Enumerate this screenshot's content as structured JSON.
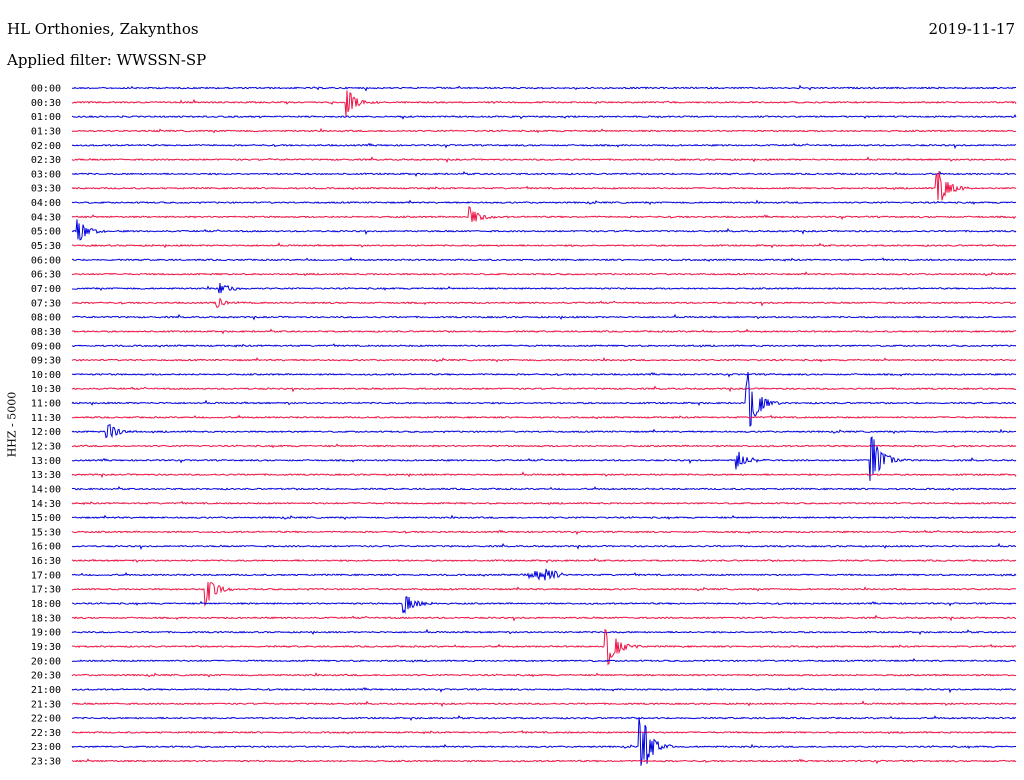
{
  "header": {
    "station": "HL Orthonies, Zakynthos",
    "filter": "Applied filter: WWSSN-SP",
    "date": "2019-11-17"
  },
  "chart_data": {
    "type": "line",
    "title": "HL Orthonies, Zakynthos",
    "subtitle": "Applied filter: WWSSN-SP",
    "ylabel": "HHZ - 5000",
    "colors": {
      "even_row": "#0000dd",
      "odd_row": "#ee1144"
    },
    "rows": [
      "00:00",
      "00:30",
      "01:00",
      "01:30",
      "02:00",
      "02:30",
      "03:00",
      "03:30",
      "04:00",
      "04:30",
      "05:00",
      "05:30",
      "06:00",
      "06:30",
      "07:00",
      "07:30",
      "08:00",
      "08:30",
      "09:00",
      "09:30",
      "10:00",
      "10:30",
      "11:00",
      "11:30",
      "12:00",
      "12:30",
      "13:00",
      "13:30",
      "14:00",
      "14:30",
      "15:00",
      "15:30",
      "16:00",
      "16:30",
      "17:00",
      "17:30",
      "18:00",
      "18:30",
      "19:00",
      "19:30",
      "20:00",
      "20:30",
      "21:00",
      "21:30",
      "22:00",
      "22:30",
      "23:00",
      "23:30"
    ],
    "events": [
      {
        "row": 1,
        "t": 0.29,
        "amp": 15,
        "kind": "quake"
      },
      {
        "row": 7,
        "t": 0.915,
        "amp": 25,
        "kind": "quake"
      },
      {
        "row": 9,
        "t": 0.42,
        "amp": 12,
        "kind": "quake"
      },
      {
        "row": 10,
        "t": 0.005,
        "amp": 14,
        "kind": "quake"
      },
      {
        "row": 14,
        "t": 0.155,
        "amp": 7,
        "kind": "quake"
      },
      {
        "row": 15,
        "t": 0.152,
        "amp": 7,
        "kind": "quake"
      },
      {
        "row": 22,
        "t": 0.713,
        "amp": 45,
        "kind": "quake"
      },
      {
        "row": 24,
        "t": 0.035,
        "amp": 12,
        "kind": "quake"
      },
      {
        "row": 26,
        "t": 0.703,
        "amp": 12,
        "kind": "quake"
      },
      {
        "row": 26,
        "t": 0.845,
        "amp": 35,
        "kind": "quake"
      },
      {
        "row": 34,
        "t": 0.5,
        "amp": 7,
        "kind": "tremor"
      },
      {
        "row": 35,
        "t": 0.14,
        "amp": 22,
        "kind": "quake"
      },
      {
        "row": 36,
        "t": 0.35,
        "amp": 14,
        "kind": "quake"
      },
      {
        "row": 39,
        "t": 0.564,
        "amp": 30,
        "kind": "quake"
      },
      {
        "row": 46,
        "t": 0.6,
        "amp": 45,
        "kind": "quake"
      }
    ]
  }
}
